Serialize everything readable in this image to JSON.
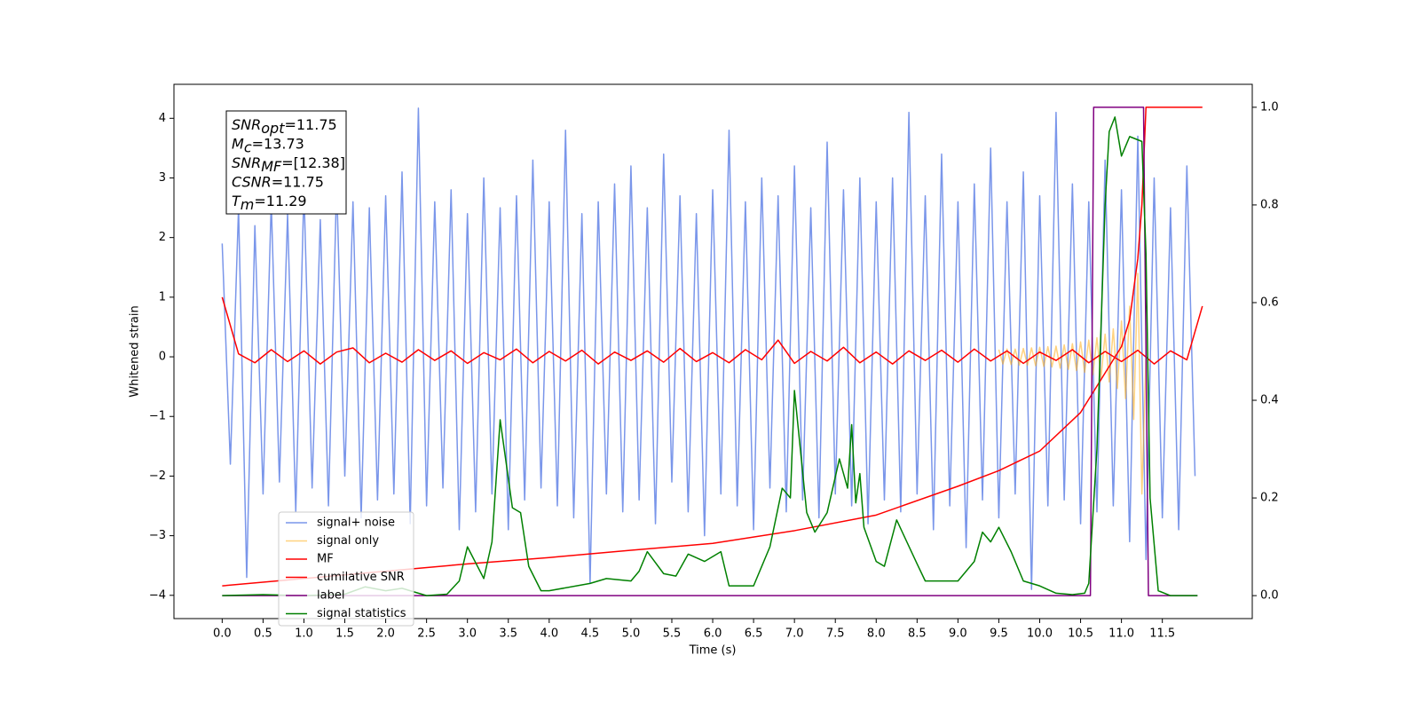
{
  "chart_data": {
    "type": "line",
    "xlabel": "Time (s)",
    "ylabel": "Whitened strain",
    "xlim": [
      -0.59,
      12.6
    ],
    "ylim": [
      -4.39,
      4.57
    ],
    "y2lim": [
      -0.047,
      1.047
    ],
    "xticks": [
      {
        "value": 0,
        "label": "0.0"
      },
      0.5,
      {
        "value": 1,
        "label": "1.0"
      },
      1.5,
      {
        "value": 2,
        "label": "2.0"
      },
      2.5,
      {
        "value": 3,
        "label": "3.0"
      },
      3.5,
      {
        "value": 4,
        "label": "4.0"
      },
      4.5,
      {
        "value": 5,
        "label": "5.0"
      },
      5.5,
      {
        "value": 6,
        "label": "6.0"
      },
      6.5,
      {
        "value": 7,
        "label": "7.0"
      },
      7.5,
      {
        "value": 8,
        "label": "8.0"
      },
      8.5,
      {
        "value": 9,
        "label": "9.0"
      },
      9.5,
      {
        "value": 10,
        "label": "10.0"
      },
      10.5,
      {
        "value": 11,
        "label": "11.0"
      },
      11.5
    ],
    "yticks": [
      {
        "value": -4,
        "label": "−4"
      },
      {
        "value": -3,
        "label": "−3"
      },
      {
        "value": -2,
        "label": "−2"
      },
      {
        "value": -1,
        "label": "−1"
      },
      0,
      1,
      2,
      3,
      4
    ],
    "y2ticks": [
      {
        "value": 0,
        "label": "0.0"
      },
      0.2,
      0.4,
      0.6,
      0.8,
      {
        "value": 1,
        "label": "1.0"
      }
    ],
    "legend": "lower left",
    "annotation": [
      {
        "symbol": "SNR",
        "sub": "opt",
        "text": "=11.75"
      },
      {
        "symbol": "M",
        "sub": "c",
        "text": "=13.73"
      },
      {
        "symbol": "SNR",
        "sub": "MF",
        "text": "=[12.38]"
      },
      {
        "symbol": "CSNR",
        "text": "=11.75"
      },
      {
        "symbol": "T",
        "sub": "m",
        "text": "=11.29"
      }
    ],
    "series": [
      {
        "name": "signal+ noise",
        "color": "#4169e1",
        "alpha": 0.7,
        "axis": "y",
        "x": [
          0,
          0.1,
          0.2,
          0.3,
          0.4,
          0.5,
          0.6,
          0.7,
          0.8,
          0.9,
          1,
          1.1,
          1.2,
          1.3,
          1.4,
          1.5,
          1.6,
          1.7,
          1.8,
          1.9,
          2,
          2.1,
          2.2,
          2.3,
          2.4,
          2.5,
          2.6,
          2.7,
          2.8,
          2.9,
          3,
          3.1,
          3.2,
          3.3,
          3.4,
          3.5,
          3.6,
          3.7,
          3.8,
          3.9,
          4,
          4.1,
          4.2,
          4.3,
          4.4,
          4.5,
          4.6,
          4.7,
          4.8,
          4.9,
          5,
          5.1,
          5.2,
          5.3,
          5.4,
          5.5,
          5.6,
          5.7,
          5.8,
          5.9,
          6,
          6.1,
          6.2,
          6.3,
          6.4,
          6.5,
          6.6,
          6.7,
          6.8,
          6.9,
          7,
          7.1,
          7.2,
          7.3,
          7.4,
          7.5,
          7.6,
          7.7,
          7.8,
          7.9,
          8,
          8.1,
          8.2,
          8.3,
          8.4,
          8.5,
          8.6,
          8.7,
          8.8,
          8.9,
          9,
          9.1,
          9.2,
          9.3,
          9.4,
          9.5,
          9.6,
          9.7,
          9.8,
          9.9,
          10,
          10.1,
          10.2,
          10.3,
          10.4,
          10.5,
          10.6,
          10.7,
          10.8,
          10.9,
          11,
          11.1,
          11.2,
          11.3,
          11.4,
          11.5,
          11.6,
          11.7,
          11.8,
          11.9
        ],
        "values": [
          1.9,
          -1.8,
          2.5,
          -3.7,
          2.2,
          -2.3,
          2.6,
          -2.1,
          2.4,
          -2.6,
          2.8,
          -2.2,
          2.3,
          -2.5,
          2.9,
          -2.0,
          2.6,
          -2.7,
          2.5,
          -2.4,
          2.7,
          -2.3,
          3.1,
          -2.8,
          4.17,
          -2.5,
          2.6,
          -2.2,
          2.8,
          -2.9,
          2.4,
          -2.6,
          3.0,
          -2.3,
          2.5,
          -2.9,
          2.7,
          -2.4,
          3.3,
          -2.2,
          2.6,
          -2.5,
          3.8,
          -2.7,
          2.4,
          -3.8,
          2.6,
          -2.3,
          2.9,
          -2.6,
          3.2,
          -2.4,
          2.5,
          -2.8,
          3.4,
          -2.1,
          2.7,
          -2.6,
          2.4,
          -3.0,
          2.8,
          -2.3,
          3.8,
          -2.5,
          2.6,
          -2.9,
          3.0,
          -2.2,
          2.7,
          -2.6,
          3.2,
          -2.4,
          2.5,
          -2.7,
          3.6,
          -2.3,
          2.8,
          -2.5,
          3.0,
          -2.8,
          2.6,
          -2.4,
          3.0,
          -2.6,
          4.1,
          -2.3,
          2.7,
          -2.9,
          3.4,
          -2.5,
          2.6,
          -3.2,
          2.9,
          -2.4,
          3.5,
          -2.7,
          2.6,
          -2.3,
          3.1,
          -3.9,
          2.7,
          -2.5,
          4.1,
          -2.4,
          2.9,
          -2.8,
          2.6,
          -2.6,
          3.3,
          -2.5,
          2.8,
          -3.1,
          3.7,
          -3.4,
          3.0,
          -2.7,
          2.5,
          -2.9,
          3.2,
          -2.0
        ]
      },
      {
        "name": "signal only",
        "color": "#ffa500",
        "alpha": 0.5,
        "axis": "y",
        "x": [
          9.5,
          9.55,
          9.6,
          9.65,
          9.7,
          9.75,
          9.8,
          9.85,
          9.9,
          9.95,
          10,
          10.05,
          10.1,
          10.15,
          10.2,
          10.25,
          10.3,
          10.35,
          10.4,
          10.45,
          10.5,
          10.55,
          10.6,
          10.65,
          10.7,
          10.75,
          10.8,
          10.85,
          10.9,
          10.95,
          11,
          11.05,
          11.1,
          11.15,
          11.2,
          11.25,
          11.3
        ],
        "values": [
          0.12,
          -0.12,
          0.13,
          -0.13,
          0.13,
          -0.14,
          0.14,
          -0.14,
          0.15,
          -0.15,
          0.16,
          -0.16,
          0.17,
          -0.17,
          0.18,
          -0.19,
          0.2,
          -0.21,
          0.22,
          -0.23,
          0.25,
          -0.26,
          0.28,
          -0.3,
          0.32,
          -0.35,
          0.38,
          -0.42,
          0.47,
          -0.53,
          0.6,
          -0.7,
          0.85,
          -1.05,
          1.4,
          -2.3,
          0
        ]
      },
      {
        "name": "MF",
        "color": "#ff0000",
        "alpha": 1,
        "axis": "y",
        "x": [
          0,
          0.2,
          0.4,
          0.6,
          0.8,
          1,
          1.2,
          1.4,
          1.6,
          1.8,
          2,
          2.2,
          2.4,
          2.6,
          2.8,
          3,
          3.2,
          3.4,
          3.6,
          3.8,
          4,
          4.2,
          4.4,
          4.6,
          4.8,
          5,
          5.2,
          5.4,
          5.6,
          5.8,
          6,
          6.2,
          6.4,
          6.6,
          6.8,
          7,
          7.2,
          7.4,
          7.6,
          7.8,
          8,
          8.2,
          8.4,
          8.6,
          8.8,
          9,
          9.2,
          9.4,
          9.6,
          9.8,
          10,
          10.2,
          10.4,
          10.6,
          10.8,
          11,
          11.2,
          11.4,
          11.6,
          11.8,
          11.99
        ],
        "values": [
          1.0,
          0.05,
          -0.1,
          0.12,
          -0.08,
          0.1,
          -0.12,
          0.08,
          0.15,
          -0.1,
          0.06,
          -0.09,
          0.12,
          -0.06,
          0.1,
          -0.11,
          0.07,
          -0.05,
          0.13,
          -0.1,
          0.09,
          -0.07,
          0.11,
          -0.12,
          0.08,
          -0.06,
          0.1,
          -0.09,
          0.14,
          -0.08,
          0.07,
          -0.1,
          0.12,
          -0.05,
          0.28,
          -0.11,
          0.09,
          -0.07,
          0.16,
          -0.1,
          0.08,
          -0.12,
          0.1,
          -0.06,
          0.11,
          -0.09,
          0.13,
          -0.07,
          0.1,
          -0.11,
          0.08,
          -0.06,
          0.12,
          -0.1,
          0.09,
          -0.08,
          0.11,
          -0.12,
          0.1,
          -0.05,
          0.85
        ]
      },
      {
        "name": "cumilative SNR",
        "color": "#ff0000",
        "alpha": 1,
        "axis": "y2",
        "x": [
          0,
          1,
          2,
          3,
          4,
          5,
          6,
          7,
          8,
          9,
          9.5,
          10,
          10.5,
          10.8,
          11,
          11.1,
          11.2,
          11.25,
          11.3,
          11.99
        ],
        "values": [
          0.02,
          0.035,
          0.05,
          0.065,
          0.078,
          0.093,
          0.107,
          0.133,
          0.165,
          0.224,
          0.256,
          0.296,
          0.375,
          0.456,
          0.51,
          0.565,
          0.69,
          0.8,
          1.0,
          1.0
        ]
      },
      {
        "name": "label",
        "color": "#800080",
        "alpha": 1,
        "axis": "y2",
        "x": [
          0,
          10.62,
          10.66,
          11.27,
          11.33,
          11.93
        ],
        "values": [
          0,
          0,
          1,
          1,
          0,
          0
        ]
      },
      {
        "name": "signal statistics",
        "color": "#008000",
        "alpha": 1,
        "axis": "y2",
        "x": [
          0,
          0.5,
          1.0,
          1.5,
          1.75,
          2.0,
          2.2,
          2.5,
          2.75,
          2.9,
          3.0,
          3.2,
          3.3,
          3.4,
          3.55,
          3.65,
          3.75,
          3.9,
          4.0,
          4.5,
          4.7,
          5.0,
          5.1,
          5.2,
          5.4,
          5.55,
          5.7,
          5.9,
          6.1,
          6.2,
          6.5,
          6.7,
          6.85,
          6.95,
          7.0,
          7.15,
          7.25,
          7.4,
          7.55,
          7.65,
          7.7,
          7.75,
          7.8,
          7.85,
          8.0,
          8.1,
          8.25,
          8.5,
          8.6,
          8.8,
          9.0,
          9.2,
          9.3,
          9.4,
          9.5,
          9.65,
          9.8,
          10.0,
          10.2,
          10.4,
          10.55,
          10.6,
          10.7,
          10.8,
          10.85,
          10.92,
          11.0,
          11.1,
          11.25,
          11.3,
          11.35,
          11.45,
          11.6,
          11.93
        ],
        "values": [
          0,
          0.002,
          0,
          0.003,
          0.018,
          0.01,
          0.015,
          0,
          0.003,
          0.03,
          0.1,
          0.035,
          0.11,
          0.36,
          0.18,
          0.17,
          0.06,
          0.01,
          0.01,
          0.025,
          0.035,
          0.03,
          0.05,
          0.09,
          0.045,
          0.04,
          0.085,
          0.07,
          0.09,
          0.02,
          0.02,
          0.1,
          0.22,
          0.2,
          0.42,
          0.17,
          0.13,
          0.17,
          0.28,
          0.22,
          0.35,
          0.19,
          0.25,
          0.14,
          0.07,
          0.06,
          0.155,
          0.065,
          0.03,
          0.03,
          0.03,
          0.07,
          0.13,
          0.11,
          0.14,
          0.09,
          0.03,
          0.02,
          0.005,
          0.002,
          0.005,
          0.025,
          0.3,
          0.8,
          0.95,
          0.98,
          0.9,
          0.94,
          0.93,
          0.7,
          0.2,
          0.01,
          0,
          0
        ]
      }
    ]
  }
}
